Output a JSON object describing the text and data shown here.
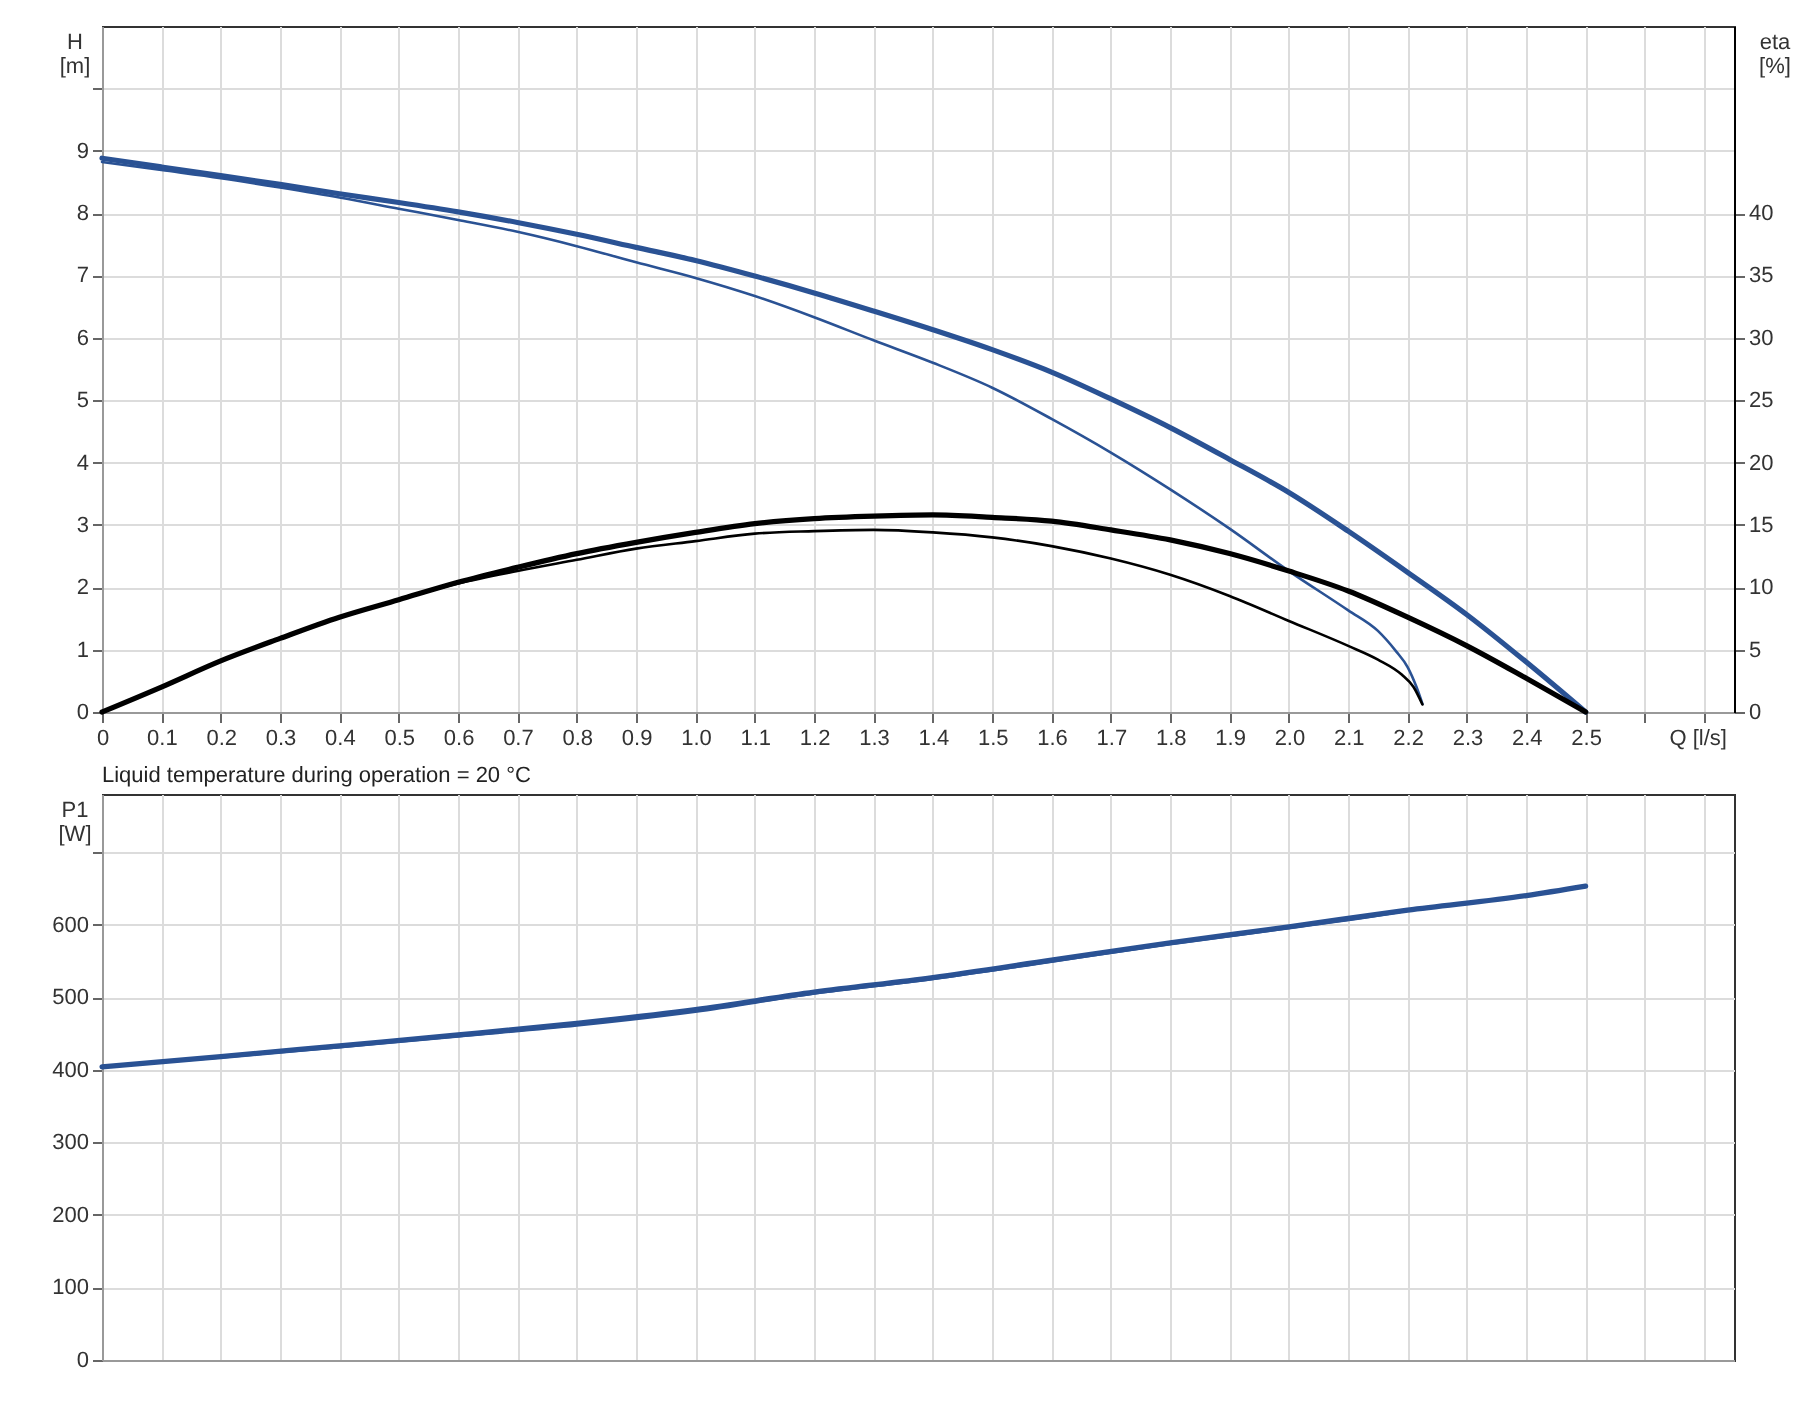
{
  "chart_data": [
    {
      "type": "line",
      "xlabel": "Q [l/s]",
      "ylabel": "H [m]",
      "y2label": "eta [%]",
      "xlim": [
        0,
        2.75
      ],
      "xticks": [
        0,
        0.1,
        0.2,
        0.3,
        0.4,
        0.5,
        0.6,
        0.7,
        0.8,
        0.9,
        {
          "value": 1,
          "label": "1.0"
        },
        1.1,
        1.2,
        1.3,
        1.4,
        1.5,
        1.6,
        1.7,
        1.8,
        1.9,
        {
          "value": 2,
          "label": "2.0"
        },
        2.1,
        2.2,
        2.3,
        2.4,
        2.5,
        {
          "value": 2.6,
          "label": null
        },
        {
          "value": 2.7,
          "label": null
        }
      ],
      "ylim": [
        0,
        11
      ],
      "yticks": [
        0,
        1,
        2,
        3,
        4,
        5,
        6,
        7,
        8,
        9,
        {
          "value": 10,
          "label": null
        }
      ],
      "y2lim": [
        0,
        55
      ],
      "y2ticks": [
        0,
        5,
        10,
        15,
        20,
        25,
        30,
        35,
        40
      ],
      "grid": true,
      "series": [
        {
          "color": "#2a5294",
          "x": [
            0,
            0.1,
            0.2,
            0.3,
            0.4,
            0.5,
            0.6,
            0.7,
            0.8,
            0.9,
            1.0,
            1.1,
            1.2,
            1.3,
            1.4,
            1.5,
            1.6,
            1.7,
            1.8,
            1.9,
            2.0,
            2.1,
            2.2,
            2.3,
            2.4,
            2.5
          ],
          "values": [
            8.88,
            8.74,
            8.6,
            8.46,
            8.31,
            8.17,
            8.02,
            7.85,
            7.66,
            7.45,
            7.24,
            6.99,
            6.72,
            6.43,
            6.13,
            5.81,
            5.45,
            5.02,
            4.56,
            4.05,
            3.52,
            2.9,
            2.24,
            1.56,
            0.8,
            0
          ]
        },
        {
          "color": "#2a5294",
          "x": [
            0,
            0.1,
            0.2,
            0.3,
            0.4,
            0.5,
            0.6,
            0.7,
            0.8,
            0.9,
            1.0,
            1.1,
            1.2,
            1.3,
            1.4,
            1.5,
            1.6,
            1.7,
            1.8,
            1.9,
            2.0,
            2.1,
            2.15,
            2.18,
            2.2,
            2.215,
            2.225
          ],
          "values": [
            8.82,
            8.69,
            8.56,
            8.41,
            8.25,
            8.07,
            7.89,
            7.7,
            7.47,
            7.21,
            6.96,
            6.67,
            6.33,
            5.96,
            5.6,
            5.2,
            4.7,
            4.16,
            3.57,
            2.94,
            2.26,
            1.63,
            1.3,
            0.98,
            0.72,
            0.4,
            0.13
          ]
        },
        {
          "color": "#000000",
          "axis": "y2",
          "x": [
            0,
            0.1,
            0.2,
            0.3,
            0.4,
            0.5,
            0.6,
            0.7,
            0.8,
            0.9,
            1.0,
            1.1,
            1.2,
            1.3,
            1.4,
            1.5,
            1.6,
            1.7,
            1.8,
            1.9,
            2.0,
            2.1,
            2.2,
            2.3,
            2.4,
            2.5
          ],
          "values": [
            0,
            2,
            4.1,
            5.9,
            7.6,
            9,
            10.4,
            11.6,
            12.7,
            13.6,
            14.4,
            15.1,
            15.5,
            15.7,
            15.8,
            15.6,
            15.3,
            14.6,
            13.8,
            12.7,
            11.3,
            9.7,
            7.6,
            5.3,
            2.7,
            0
          ]
        },
        {
          "color": "#000000",
          "axis": "y2",
          "x": [
            0,
            0.1,
            0.2,
            0.3,
            0.4,
            0.5,
            0.6,
            0.7,
            0.8,
            0.9,
            1.0,
            1.1,
            1.2,
            1.3,
            1.4,
            1.5,
            1.6,
            1.7,
            1.8,
            1.9,
            2.0,
            2.1,
            2.15,
            2.19,
            2.21,
            2.225
          ],
          "values": [
            0,
            2,
            4.1,
            5.9,
            7.6,
            9,
            10.3,
            11.3,
            12.2,
            13.1,
            13.7,
            14.3,
            14.5,
            14.6,
            14.4,
            14,
            13.3,
            12.3,
            11,
            9.3,
            7.3,
            5.3,
            4.2,
            3.0,
            2.0,
            0.6
          ]
        }
      ]
    },
    {
      "type": "line",
      "ylabel": "P1 [W]",
      "annotations": [
        "Liquid temperature during operation = 20 °C"
      ],
      "xlim": [
        0,
        2.75
      ],
      "xticks": [
        0,
        0.1,
        0.2,
        0.3,
        0.4,
        0.5,
        0.6,
        0.7,
        0.8,
        0.9,
        1.0,
        1.1,
        1.2,
        1.3,
        1.4,
        1.5,
        1.6,
        1.7,
        1.8,
        1.9,
        2.0,
        2.1,
        2.2,
        2.3,
        2.4,
        2.5,
        2.6,
        2.7
      ],
      "ylim": [
        0,
        780
      ],
      "yticks": [
        0,
        100,
        200,
        300,
        400,
        500,
        600,
        {
          "value": 700,
          "label": null
        }
      ],
      "tick_labels": "y",
      "grid": true,
      "series": [
        {
          "color": "#2a5294",
          "x": [
            0,
            0.2,
            0.4,
            0.6,
            0.8,
            1.0,
            1.2,
            1.4,
            1.6,
            1.8,
            2.0,
            2.2,
            2.4,
            2.5
          ],
          "values": [
            404,
            418,
            433,
            448,
            464,
            483,
            507,
            527,
            551,
            575,
            597,
            620,
            640,
            653
          ]
        },
        {
          "color": "#2a5294",
          "x": [
            0,
            0.2,
            0.4,
            0.6,
            0.8,
            1.0,
            1.2,
            1.4,
            1.6,
            1.8,
            2.0,
            2.2,
            2.22
          ],
          "values": [
            404,
            417,
            431,
            446,
            461,
            480,
            505,
            525,
            549,
            573,
            595,
            619,
            622
          ]
        }
      ]
    }
  ]
}
